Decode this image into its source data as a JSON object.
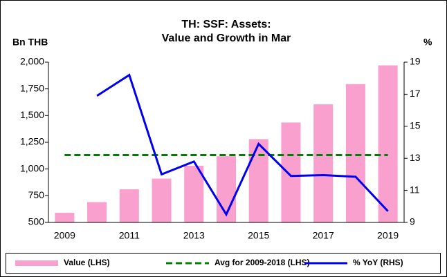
{
  "chart_data": {
    "type": "combo",
    "title": [
      "TH: SSF: Assets:",
      "Value and Growth in Mar"
    ],
    "y_label": "Bn THB",
    "y2_label": "%",
    "categories": [
      "2009",
      null,
      "2011",
      null,
      "2013",
      null,
      "2015",
      null,
      "2017",
      null,
      "2019"
    ],
    "ylim": [
      500,
      2000
    ],
    "yticks": [
      500,
      750,
      {
        "value": 1000,
        "label": "1,000"
      },
      {
        "value": 1250,
        "label": "1,250"
      },
      {
        "value": 1500,
        "label": "1,500"
      },
      {
        "value": 1750,
        "label": "1,750"
      },
      {
        "value": 2000,
        "label": "2,000"
      }
    ],
    "y2lim": [
      9,
      19
    ],
    "y2ticks": [
      9,
      11,
      13,
      15,
      17,
      19
    ],
    "legend": "bottom",
    "series": [
      {
        "name": "Value (LHS)",
        "type": "bar",
        "color": "#f9a0cf",
        "values": [
          590,
          690,
          810,
          910,
          1030,
          1120,
          1280,
          1435,
          1605,
          1795,
          1970
        ]
      },
      {
        "name": "Avg for 2009-2018 (LHS)",
        "type": "dashed",
        "color": "#008000",
        "values": [
          1130,
          1130,
          1130,
          1130,
          1130,
          1130,
          1130,
          1130,
          1130,
          1130,
          1130
        ]
      },
      {
        "name": "% YoY (RHS)",
        "type": "line",
        "axis": "y2",
        "color": "#0000ee",
        "values": [
          null,
          16.9,
          18.2,
          12.0,
          12.8,
          9.5,
          13.9,
          11.9,
          11.95,
          11.85,
          9.7
        ]
      }
    ]
  }
}
